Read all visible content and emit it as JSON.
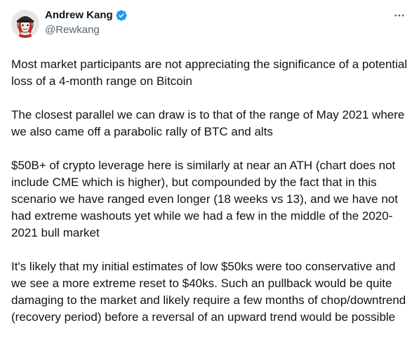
{
  "author": {
    "display_name": "Andrew Kang",
    "handle": "@Rewkang",
    "verified_icon": "verified-badge-icon",
    "avatar": "avatar-image"
  },
  "menu": {
    "icon": "more-horizontal-icon"
  },
  "tweet": {
    "paragraphs": [
      "Most market participants are not appreciating the significance of a potential loss of a 4-month range on Bitcoin",
      "The closest parallel we can draw is to that of the range of May 2021 where we also came off a parabolic rally of BTC and alts",
      "$50B+ of crypto leverage here is similarly at near an ATH (chart does not include CME which is higher), but compounded by the fact that in this scenario we have ranged even longer (18 weeks vs 13), and we have not had extreme washouts yet while we had a few in the middle of the 2020-2021 bull market",
      "It's likely that my initial estimates of low $50ks were too conservative and we see a more extreme reset to $40ks. Such an pullback would be quite damaging to the market and likely require a few months of chop/downtrend (recovery period) before a reversal of an upward trend would be possible"
    ]
  },
  "colors": {
    "text_primary": "#0f1419",
    "text_secondary": "#536471",
    "verified_blue": "#1d9bf0",
    "background": "#ffffff"
  }
}
